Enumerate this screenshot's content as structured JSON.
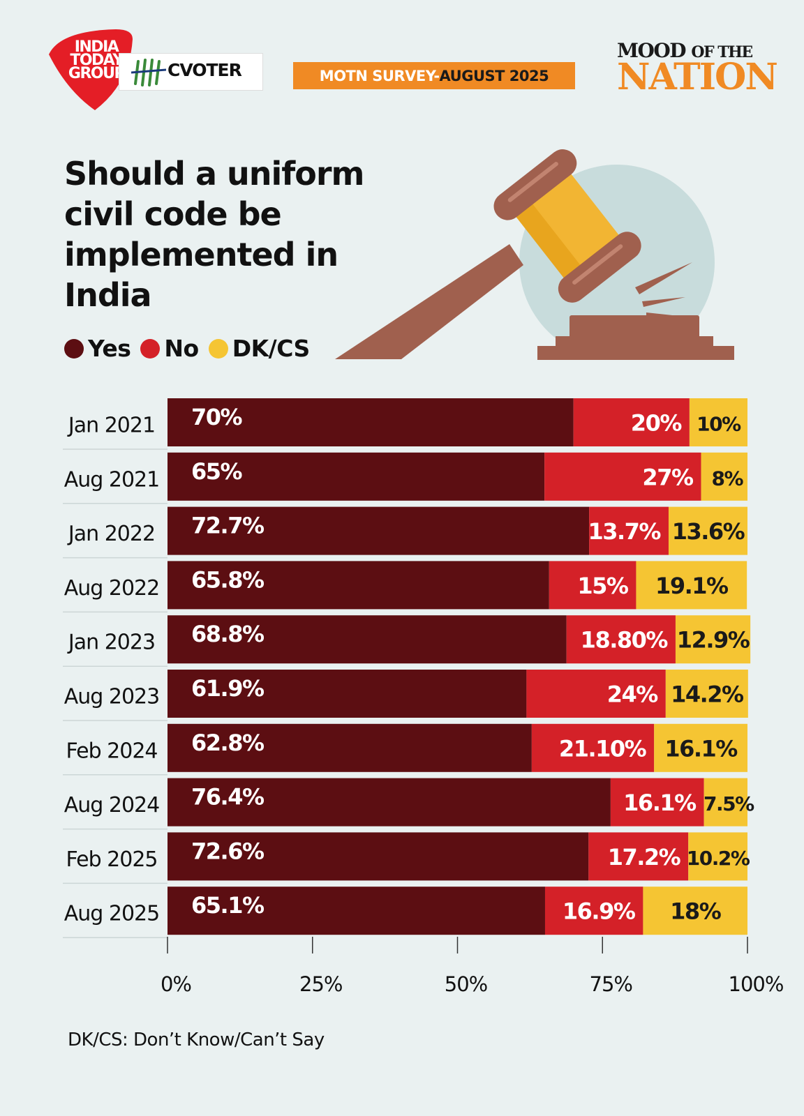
{
  "branding": {
    "india_today": [
      "INDIA",
      "TODAY",
      "GROUP"
    ],
    "cvoter": "CVOTER",
    "survey_part1": "MOTN SURVEY-",
    "survey_part2": "AUGUST 2025",
    "mood_top": "MOOD",
    "mood_top_small": "OF THE",
    "mood_bottom": "NATION"
  },
  "title": "Should a uniform civil code be implemented in India",
  "footnote": "DK/CS: Don’t Know/Can’t Say",
  "colors": {
    "yes": "#5c0e12",
    "no": "#d42128",
    "dk": "#f5c533",
    "accent": "#f08a24",
    "background": "#eaf1f1"
  },
  "chart_data": {
    "type": "bar",
    "orientation": "horizontal",
    "stacked": true,
    "categories": [
      "Jan 2021",
      "Aug 2021",
      "Jan 2022",
      "Aug 2022",
      "Jan 2023",
      "Aug 2023",
      "Feb 2024",
      "Aug 2024",
      "Feb 2025",
      "Aug 2025"
    ],
    "series": [
      {
        "name": "Yes",
        "color": "#5c0e12",
        "values": [
          70,
          65,
          72.7,
          65.8,
          68.8,
          61.9,
          62.8,
          76.4,
          72.6,
          65.1
        ],
        "labels": [
          "70%",
          "65%",
          "72.7%",
          "65.8%",
          "68.8%",
          "61.9%",
          "62.8%",
          "76.4%",
          "72.6%",
          "65.1%"
        ]
      },
      {
        "name": "No",
        "color": "#d42128",
        "values": [
          20,
          27,
          13.7,
          15,
          18.8,
          24,
          21.1,
          16.1,
          17.2,
          16.9
        ],
        "labels": [
          "20%",
          "27%",
          "13.7%",
          "15%",
          "18.80%",
          "24%",
          "21.10%",
          "16.1%",
          "17.2%",
          "16.9%"
        ]
      },
      {
        "name": "DK/CS",
        "color": "#f5c533",
        "values": [
          10,
          8,
          13.6,
          19.1,
          12.9,
          14.2,
          16.1,
          7.5,
          10.2,
          18
        ],
        "labels": [
          "10%",
          "8%",
          "13.6%",
          "19.1%",
          "12.9%",
          "14.2%",
          "16.1%",
          "7.5%",
          "10.2%",
          "18%"
        ]
      }
    ],
    "xlim": [
      0,
      100
    ],
    "xticks": [
      "0%",
      "25%",
      "50%",
      "75%",
      "100%"
    ],
    "legend": "top-left"
  }
}
